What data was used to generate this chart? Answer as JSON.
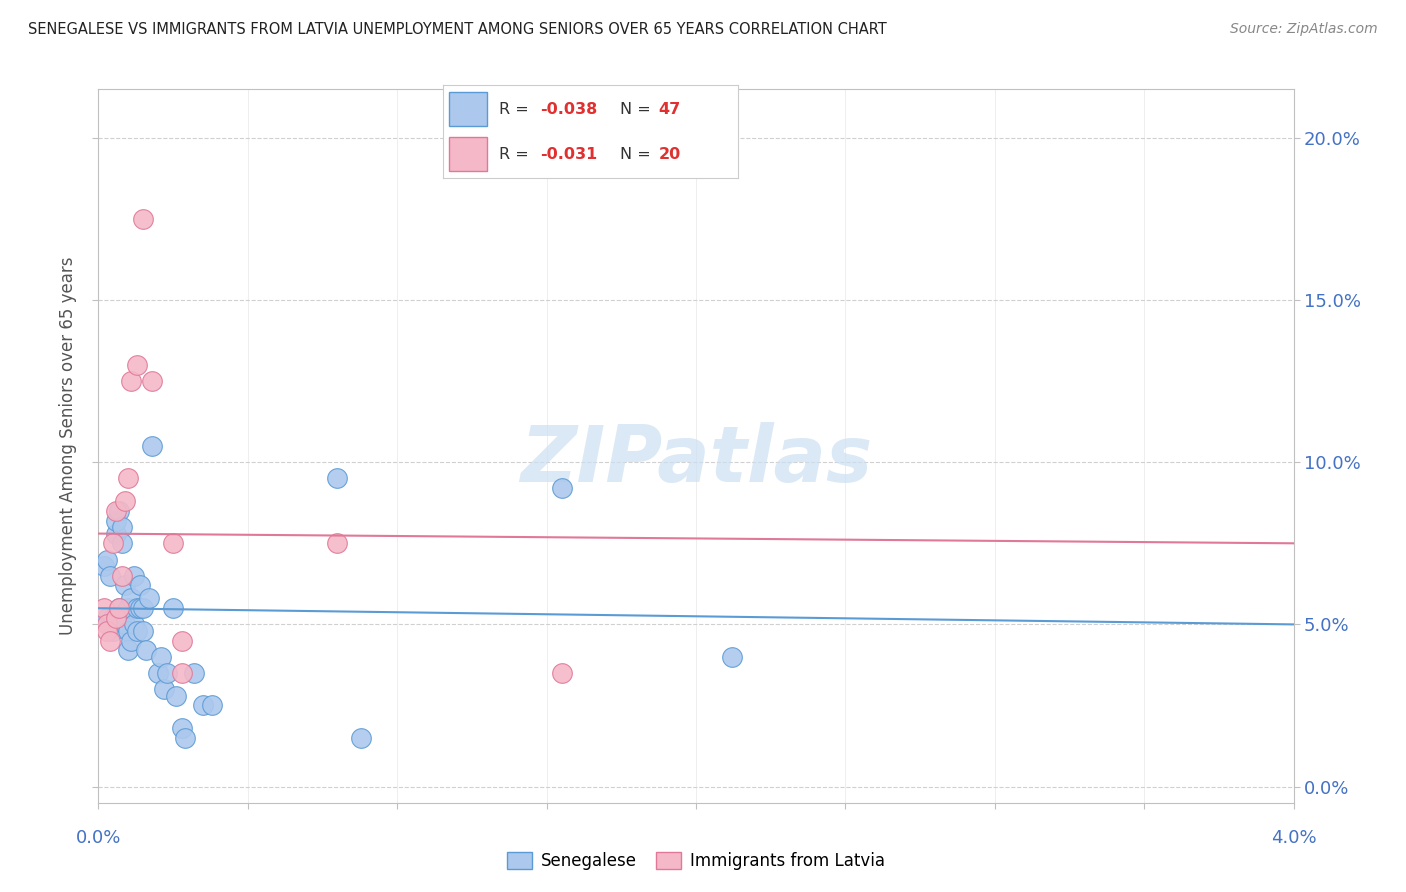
{
  "title": "SENEGALESE VS IMMIGRANTS FROM LATVIA UNEMPLOYMENT AMONG SENIORS OVER 65 YEARS CORRELATION CHART",
  "source": "Source: ZipAtlas.com",
  "ylabel": "Unemployment Among Seniors over 65 years",
  "ytick_vals": [
    0.0,
    5.0,
    10.0,
    15.0,
    20.0
  ],
  "ytick_labels": [
    "0.0%",
    "5.0%",
    "10.0%",
    "15.0%",
    "20.0%"
  ],
  "xlim": [
    0.0,
    4.0
  ],
  "ylim": [
    -0.5,
    21.5
  ],
  "legend_blue_R": "-0.038",
  "legend_blue_N": "47",
  "legend_pink_R": "-0.031",
  "legend_pink_N": "20",
  "watermark": "ZIPatlas",
  "blue_face": "#adc8ed",
  "blue_edge": "#5b9bd5",
  "pink_face": "#f4b8c8",
  "pink_edge": "#e07898",
  "blue_line_color": "#5b9bd5",
  "pink_line_color": "#e07898",
  "blue_scatter": [
    [
      0.02,
      6.8
    ],
    [
      0.03,
      5.2
    ],
    [
      0.03,
      7.0
    ],
    [
      0.04,
      6.5
    ],
    [
      0.04,
      5.0
    ],
    [
      0.05,
      5.2
    ],
    [
      0.05,
      4.8
    ],
    [
      0.06,
      7.8
    ],
    [
      0.06,
      8.2
    ],
    [
      0.07,
      8.5
    ],
    [
      0.07,
      5.5
    ],
    [
      0.08,
      8.0
    ],
    [
      0.08,
      7.5
    ],
    [
      0.08,
      5.3
    ],
    [
      0.09,
      5.0
    ],
    [
      0.09,
      6.2
    ],
    [
      0.1,
      5.5
    ],
    [
      0.1,
      4.8
    ],
    [
      0.1,
      4.2
    ],
    [
      0.11,
      4.5
    ],
    [
      0.11,
      5.8
    ],
    [
      0.12,
      6.5
    ],
    [
      0.12,
      5.0
    ],
    [
      0.13,
      5.5
    ],
    [
      0.13,
      4.8
    ],
    [
      0.14,
      6.2
    ],
    [
      0.14,
      5.5
    ],
    [
      0.15,
      5.5
    ],
    [
      0.15,
      4.8
    ],
    [
      0.16,
      4.2
    ],
    [
      0.17,
      5.8
    ],
    [
      0.18,
      10.5
    ],
    [
      0.2,
      3.5
    ],
    [
      0.21,
      4.0
    ],
    [
      0.22,
      3.0
    ],
    [
      0.23,
      3.5
    ],
    [
      0.25,
      5.5
    ],
    [
      0.26,
      2.8
    ],
    [
      0.28,
      1.8
    ],
    [
      0.29,
      1.5
    ],
    [
      0.32,
      3.5
    ],
    [
      0.35,
      2.5
    ],
    [
      0.38,
      2.5
    ],
    [
      0.8,
      9.5
    ],
    [
      0.88,
      1.5
    ],
    [
      1.55,
      9.2
    ],
    [
      2.12,
      4.0
    ]
  ],
  "pink_scatter": [
    [
      0.02,
      5.5
    ],
    [
      0.03,
      5.0
    ],
    [
      0.03,
      4.8
    ],
    [
      0.04,
      4.5
    ],
    [
      0.05,
      7.5
    ],
    [
      0.06,
      8.5
    ],
    [
      0.06,
      5.2
    ],
    [
      0.07,
      5.5
    ],
    [
      0.08,
      6.5
    ],
    [
      0.09,
      8.8
    ],
    [
      0.1,
      9.5
    ],
    [
      0.11,
      12.5
    ],
    [
      0.13,
      13.0
    ],
    [
      0.15,
      17.5
    ],
    [
      0.18,
      12.5
    ],
    [
      0.25,
      7.5
    ],
    [
      0.28,
      4.5
    ],
    [
      0.28,
      3.5
    ],
    [
      0.8,
      7.5
    ],
    [
      1.55,
      3.5
    ]
  ],
  "blue_trend_x": [
    0.0,
    4.0
  ],
  "blue_trend_y": [
    5.5,
    5.0
  ],
  "pink_trend_x": [
    0.0,
    4.0
  ],
  "pink_trend_y": [
    7.8,
    7.5
  ],
  "xtick_positions": [
    0.0,
    0.5,
    1.0,
    1.5,
    2.0,
    2.5,
    3.0,
    3.5,
    4.0
  ],
  "xtick_show": [
    0.0,
    4.0
  ],
  "grid_color": "#d0d0d0",
  "spine_color": "#c0c0c0"
}
